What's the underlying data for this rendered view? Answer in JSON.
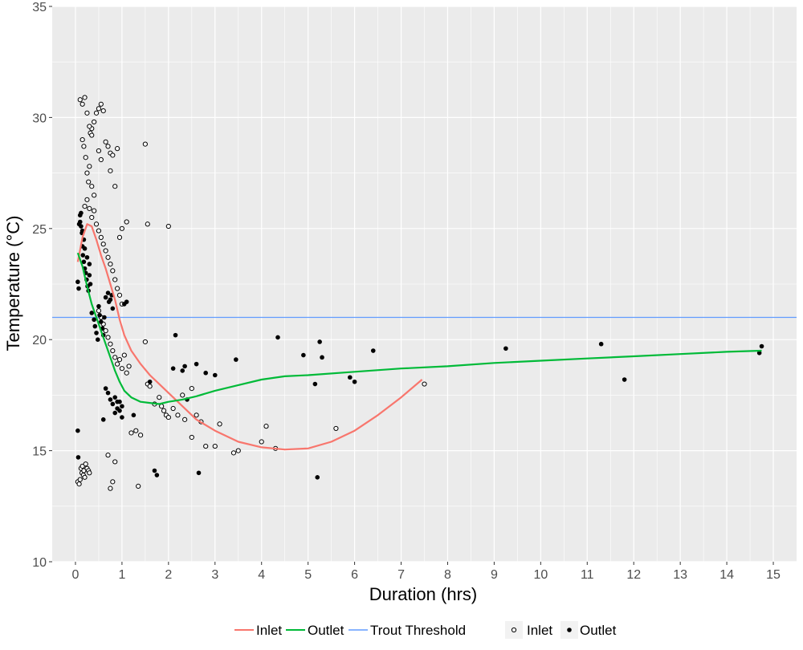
{
  "chart_data": {
    "type": "scatter",
    "title": "",
    "xlabel": "Duration (hrs)",
    "ylabel": "Temperature (°C)",
    "xlim": [
      -0.5,
      15.5
    ],
    "ylim": [
      10,
      35
    ],
    "x_ticks": [
      "0",
      "1",
      "2",
      "3",
      "4",
      "5",
      "6",
      "7",
      "8",
      "9",
      "10",
      "11",
      "12",
      "13",
      "14",
      "15"
    ],
    "y_ticks": [
      "10",
      "15",
      "20",
      "25",
      "30",
      "35"
    ],
    "grid": true,
    "legend_position": "bottom",
    "colors": {
      "panel": "#ebebeb",
      "grid": "#ffffff",
      "inlet_line": "#f8766d",
      "outlet_line": "#00ba38",
      "threshold_line": "#619cff",
      "points": "#000000"
    },
    "threshold": {
      "name": "Trout Threshold",
      "y": 21
    },
    "lines": [
      {
        "name": "Inlet",
        "x": [
          0.05,
          0.15,
          0.25,
          0.35,
          0.45,
          0.55,
          0.65,
          0.75,
          0.85,
          0.95,
          1.05,
          1.2,
          1.4,
          1.6,
          1.8,
          2.0,
          2.3,
          2.6,
          3.0,
          3.5,
          4.0,
          4.5,
          5.0,
          5.5,
          6.0,
          6.5,
          7.0,
          7.45
        ],
        "y": [
          23.5,
          24.6,
          25.2,
          25.1,
          24.5,
          23.8,
          23.2,
          22.5,
          21.8,
          20.9,
          20.2,
          19.5,
          18.9,
          18.4,
          18.0,
          17.6,
          17.0,
          16.4,
          15.9,
          15.4,
          15.15,
          15.05,
          15.1,
          15.4,
          15.9,
          16.6,
          17.4,
          18.2
        ]
      },
      {
        "name": "Outlet",
        "x": [
          0.05,
          0.15,
          0.25,
          0.35,
          0.45,
          0.55,
          0.65,
          0.75,
          0.85,
          0.95,
          1.05,
          1.2,
          1.4,
          1.6,
          1.8,
          2.0,
          2.3,
          2.6,
          3.0,
          3.5,
          4.0,
          4.5,
          5.0,
          6.0,
          7.0,
          8.0,
          9.0,
          10.0,
          11.0,
          12.0,
          13.0,
          14.0,
          14.75
        ],
        "y": [
          23.9,
          23.3,
          22.4,
          21.6,
          21.0,
          20.4,
          19.8,
          19.2,
          18.6,
          18.1,
          17.7,
          17.4,
          17.2,
          17.15,
          17.1,
          17.2,
          17.3,
          17.45,
          17.7,
          17.95,
          18.2,
          18.35,
          18.4,
          18.55,
          18.7,
          18.8,
          18.95,
          19.05,
          19.15,
          19.25,
          19.35,
          19.45,
          19.5
        ]
      }
    ],
    "series": [
      {
        "name": "Inlet",
        "marker": "open-circle",
        "x": [
          0.05,
          0.08,
          0.1,
          0.12,
          0.14,
          0.15,
          0.17,
          0.18,
          0.2,
          0.22,
          0.25,
          0.28,
          0.3,
          0.32,
          0.35,
          0.4,
          0.45,
          0.5,
          0.55,
          0.6,
          0.65,
          0.7,
          0.75,
          0.8,
          0.9,
          0.15,
          0.18,
          0.22,
          0.25,
          0.28,
          0.3,
          0.35,
          0.4,
          0.2,
          0.25,
          0.3,
          0.35,
          0.4,
          0.45,
          0.5,
          0.55,
          0.6,
          0.65,
          0.7,
          0.75,
          0.8,
          0.85,
          0.9,
          0.95,
          1.0,
          0.5,
          0.55,
          0.6,
          0.65,
          0.7,
          0.75,
          0.8,
          0.85,
          0.9,
          0.95,
          1.0,
          1.05,
          1.1,
          1.15,
          1.5,
          1.55,
          1.6,
          1.7,
          1.8,
          1.85,
          1.9,
          1.95,
          2.0,
          2.1,
          2.2,
          2.3,
          2.5,
          2.6,
          2.7,
          3.0,
          3.1,
          3.4,
          3.5,
          4.1,
          4.3,
          1.2,
          1.3,
          1.4,
          1.1,
          1.0,
          0.95,
          0.7,
          0.75,
          0.8,
          0.85,
          0.1,
          0.15,
          0.2,
          0.25,
          0.3,
          0.35,
          0.5,
          0.55,
          0.75,
          0.85,
          1.35,
          1.5,
          1.55,
          2.0,
          2.35,
          2.5,
          2.8,
          4.0,
          5.6,
          7.5
        ],
        "y": [
          13.6,
          13.5,
          13.7,
          14.2,
          14.0,
          14.3,
          13.9,
          14.1,
          13.8,
          14.4,
          14.2,
          14.1,
          14.0,
          29.3,
          29.5,
          29.8,
          30.2,
          30.4,
          30.6,
          30.3,
          28.9,
          28.7,
          28.4,
          28.3,
          28.6,
          29.0,
          28.7,
          28.2,
          27.5,
          27.1,
          27.8,
          26.9,
          26.5,
          26.0,
          26.3,
          25.9,
          25.5,
          25.8,
          25.2,
          24.9,
          24.6,
          24.3,
          24.0,
          23.7,
          23.4,
          23.1,
          22.7,
          22.3,
          22.0,
          21.6,
          21.3,
          21.0,
          20.7,
          20.4,
          20.1,
          19.8,
          19.5,
          19.2,
          18.9,
          19.1,
          18.7,
          19.3,
          18.5,
          18.8,
          19.9,
          18.0,
          17.9,
          17.1,
          17.4,
          17.0,
          16.8,
          16.6,
          16.5,
          16.9,
          16.6,
          17.5,
          17.8,
          16.6,
          16.3,
          15.2,
          16.2,
          14.9,
          15.0,
          16.1,
          15.1,
          15.8,
          15.9,
          15.7,
          25.3,
          25.0,
          24.6,
          14.8,
          13.3,
          13.6,
          14.5,
          30.8,
          30.6,
          30.9,
          30.2,
          29.6,
          29.2,
          28.5,
          28.1,
          27.6,
          26.9,
          13.4,
          28.8,
          25.2,
          25.1,
          16.4,
          15.6,
          15.2,
          15.4,
          16.0,
          18.0
        ]
      },
      {
        "name": "Outlet",
        "marker": "filled-circle",
        "x": [
          0.05,
          0.06,
          0.08,
          0.1,
          0.12,
          0.14,
          0.15,
          0.16,
          0.18,
          0.2,
          0.22,
          0.24,
          0.26,
          0.28,
          0.3,
          0.32,
          0.35,
          0.4,
          0.42,
          0.45,
          0.48,
          0.5,
          0.52,
          0.55,
          0.58,
          0.6,
          0.62,
          0.65,
          0.7,
          0.72,
          0.75,
          0.78,
          0.8,
          0.85,
          0.9,
          0.95,
          1.0,
          1.05,
          1.1,
          0.1,
          0.12,
          0.15,
          0.18,
          0.2,
          0.25,
          0.3,
          0.05,
          0.07,
          0.6,
          0.65,
          0.7,
          0.75,
          0.8,
          0.85,
          0.9,
          0.95,
          1.0,
          1.25,
          1.6,
          1.7,
          1.75,
          2.1,
          2.15,
          2.3,
          2.35,
          2.4,
          2.6,
          2.65,
          2.8,
          3.0,
          3.45,
          4.35,
          4.9,
          5.15,
          5.2,
          5.25,
          5.3,
          5.9,
          6.0,
          6.4,
          9.25,
          11.3,
          11.8,
          14.7,
          14.75
        ],
        "y": [
          15.9,
          14.7,
          25.2,
          25.3,
          25.1,
          24.8,
          24.2,
          23.8,
          23.5,
          23.2,
          23.0,
          22.7,
          22.4,
          22.2,
          22.9,
          22.5,
          21.2,
          20.9,
          20.6,
          20.3,
          20.0,
          21.5,
          21.1,
          20.8,
          20.5,
          20.2,
          21.0,
          21.9,
          22.1,
          21.7,
          21.8,
          22.0,
          21.4,
          17.4,
          17.2,
          16.8,
          17.0,
          21.6,
          21.7,
          25.6,
          25.7,
          24.9,
          24.5,
          24.1,
          23.7,
          23.4,
          22.6,
          22.3,
          16.4,
          17.8,
          17.6,
          17.3,
          17.1,
          16.7,
          16.9,
          17.2,
          16.5,
          16.6,
          18.1,
          14.1,
          13.9,
          18.7,
          20.2,
          18.6,
          18.8,
          17.3,
          18.9,
          14.0,
          18.5,
          18.4,
          19.1,
          20.1,
          19.3,
          18.0,
          13.8,
          19.9,
          19.2,
          18.3,
          18.1,
          19.5,
          19.6,
          19.8,
          18.2,
          19.4,
          19.7
        ]
      }
    ],
    "legend": {
      "lines": [
        "Inlet",
        "Outlet",
        "Trout Threshold"
      ],
      "points": [
        "Inlet",
        "Outlet"
      ]
    }
  }
}
